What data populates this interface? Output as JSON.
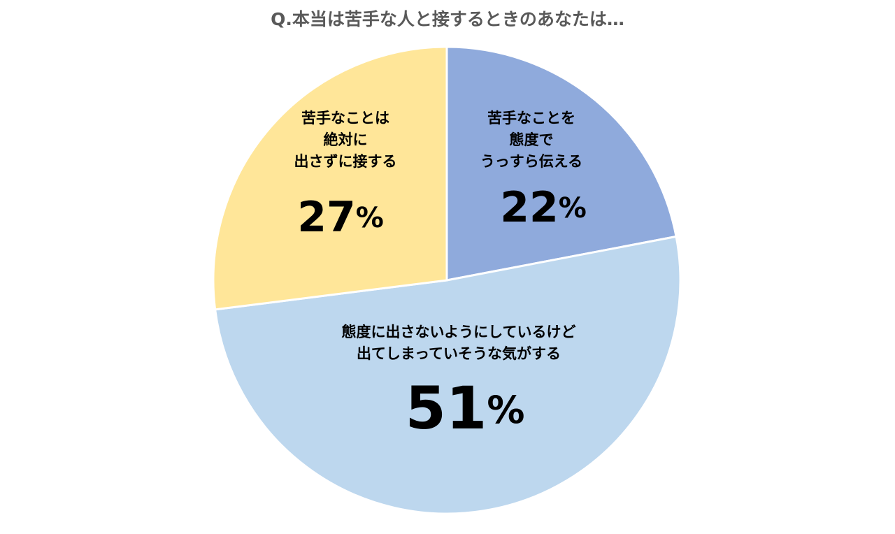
{
  "chart_data": {
    "type": "pie",
    "title": "Q.本当は苦手な人と接するときのあなたは…",
    "slices": [
      {
        "label_lines": [
          "苦手なことを",
          "態度で",
          "うっすら伝える"
        ],
        "value": 22,
        "value_label": "22%",
        "color": "#8FAADC"
      },
      {
        "label_lines": [
          "態度に出さないようにしているけど",
          "出てしまっていそうな気がする"
        ],
        "value": 51,
        "value_label": "51%",
        "color": "#BDD7EE"
      },
      {
        "label_lines": [
          "苦手なことは",
          "絶対に",
          "出さずに接する"
        ],
        "value": 27,
        "value_label": "27%",
        "color": "#FFE699"
      }
    ],
    "start_angle": "12 o'clock",
    "direction": "clockwise",
    "legend": "none"
  }
}
